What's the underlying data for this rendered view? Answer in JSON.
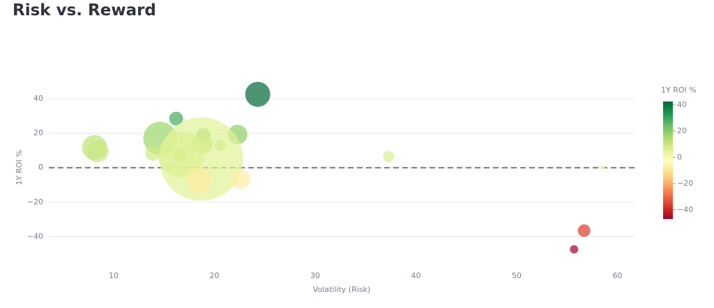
{
  "chart_data": {
    "type": "bubble",
    "title": "Risk vs. Reward",
    "x_label": "Volatility (Risk)",
    "y_label": "1Y ROI %",
    "colorbar_title": "1Y ROI %",
    "x": [
      24.3,
      16.2,
      18.9,
      22.3,
      14.6,
      8.1,
      8.4,
      18.8,
      20.6,
      13.9,
      16.7,
      18.7,
      16.6,
      37.3,
      58.5,
      18.5,
      22.6,
      56.7,
      55.7
    ],
    "y": [
      42.6,
      28.5,
      19,
      19.3,
      17,
      11.7,
      9.5,
      14,
      13,
      8.5,
      7.5,
      5,
      7.5,
      6.5,
      0.3,
      -7.5,
      -6.8,
      -36.5,
      -47.4
    ],
    "sizes": [
      18,
      10,
      10,
      14,
      24,
      18,
      16,
      15,
      8,
      11,
      33,
      60,
      9,
      8,
      4,
      18,
      14,
      9,
      6
    ],
    "xlim": [
      3.56,
      61.7
    ],
    "ylim": [
      -54,
      59
    ],
    "xticks": [
      10,
      20,
      30,
      40,
      50,
      60
    ],
    "yticks": [
      {
        "value": -40,
        "label": "−40"
      },
      {
        "value": -20,
        "label": "−20"
      },
      0,
      20,
      40
    ],
    "clim": [
      -47,
      42.6
    ],
    "cticks": [
      {
        "value": -40,
        "label": "−40"
      },
      {
        "value": -20,
        "label": "−20"
      },
      0,
      20,
      40
    ],
    "colorscale": [
      [
        0,
        "#a50026"
      ],
      [
        0.1,
        "#d73027"
      ],
      [
        0.2,
        "#f46d43"
      ],
      [
        0.3,
        "#fdae61"
      ],
      [
        0.4,
        "#fee08b"
      ],
      [
        0.5,
        "#ffffbf"
      ],
      [
        0.6,
        "#d9ef8b"
      ],
      [
        0.7,
        "#a6d96a"
      ],
      [
        0.8,
        "#66bd63"
      ],
      [
        0.9,
        "#1a9850"
      ],
      [
        1,
        "#006837"
      ]
    ],
    "hline": 0,
    "grid": true,
    "opacity": 0.7
  }
}
